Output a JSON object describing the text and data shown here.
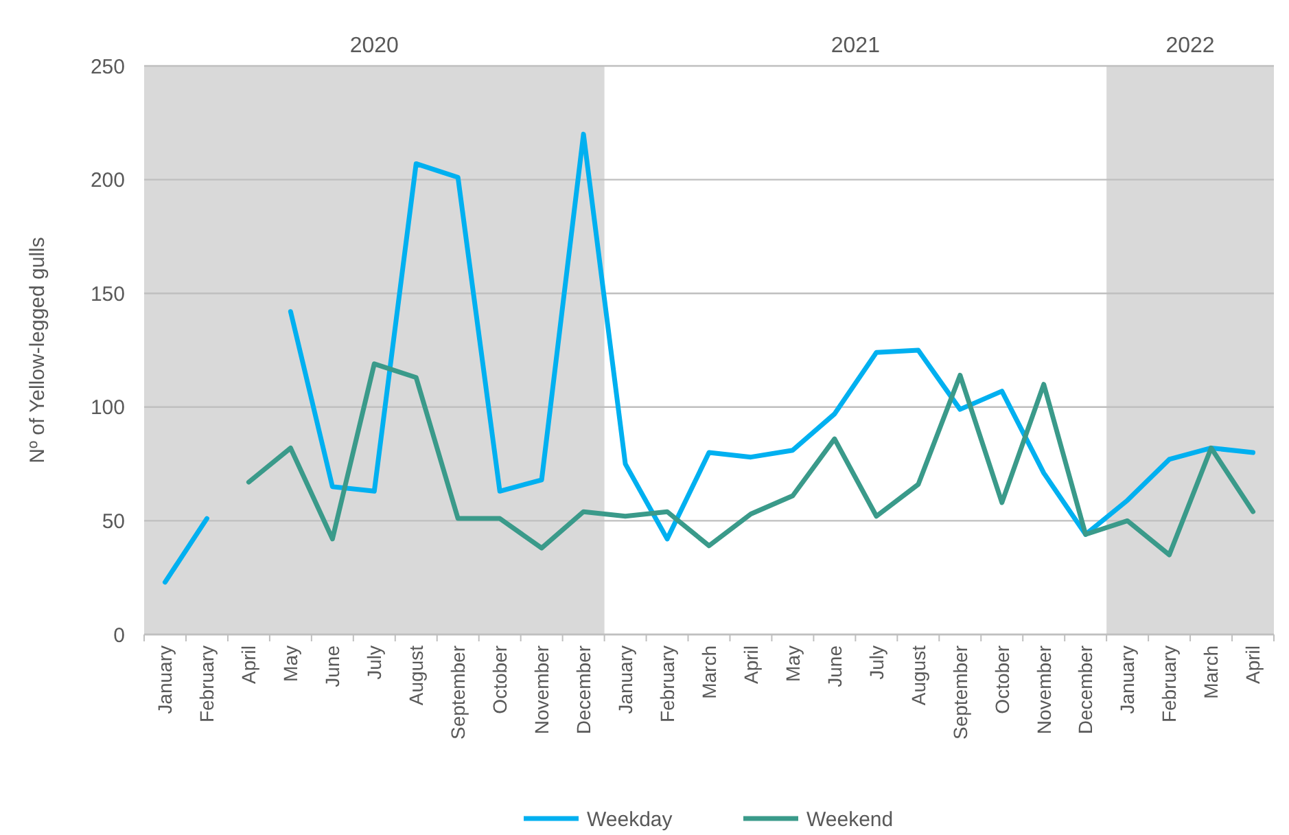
{
  "chart_data": {
    "type": "line",
    "ylabel": "Nº of Yellow-legged gulls",
    "categories": [
      "January",
      "February",
      "April",
      "May",
      "June",
      "July",
      "August",
      "September",
      "October",
      "November",
      "December",
      "January",
      "February",
      "March",
      "April",
      "May",
      "June",
      "July",
      "August",
      "September",
      "October",
      "November",
      "December",
      "January",
      "February",
      "March",
      "April"
    ],
    "series": [
      {
        "name": "Weekday",
        "color": "#00b0f0",
        "values": [
          23,
          51,
          null,
          142,
          65,
          63,
          207,
          201,
          63,
          68,
          220,
          75,
          42,
          80,
          78,
          81,
          97,
          124,
          125,
          99,
          107,
          71,
          44,
          59,
          77,
          82,
          80
        ]
      },
      {
        "name": "Weekend",
        "color": "#3a9a8a",
        "values": [
          null,
          null,
          67,
          82,
          42,
          119,
          113,
          51,
          51,
          38,
          54,
          52,
          54,
          39,
          53,
          61,
          86,
          52,
          66,
          114,
          58,
          110,
          44,
          50,
          35,
          82,
          54
        ]
      }
    ],
    "ylim": [
      0,
      250
    ],
    "yticks": [
      0,
      50,
      100,
      150,
      200,
      250
    ],
    "grid": "y",
    "legend": "bottom",
    "line_style": "solid",
    "marker": "none",
    "annotations": [
      "2020",
      "2021",
      "2022"
    ]
  }
}
